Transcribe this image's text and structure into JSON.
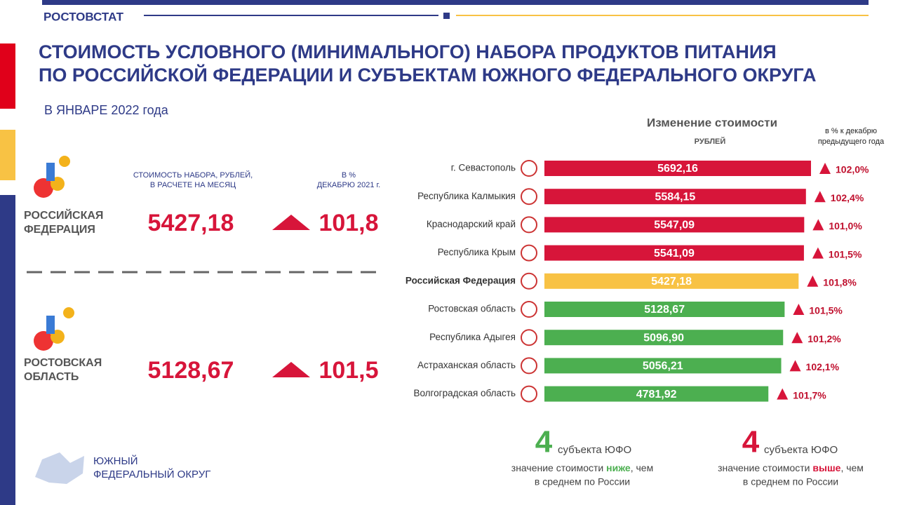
{
  "header": {
    "org": "РОСТОВСТАТ",
    "title_lines": [
      "СТОИМОСТЬ УСЛОВНОГО (МИНИМАЛЬНОГО) НАБОРА ПРОДУКТОВ ПИТАНИЯ",
      "ПО РОССИЙСКОЙ ФЕДЕРАЦИИ И СУБЪЕКТАМ ЮЖНОГО ФЕДЕРАЛЬНОГО ОКРУГА"
    ],
    "subtitle": "В  ЯНВАРЕ  2022 года"
  },
  "summary": {
    "col_cost": [
      "СТОИМОСТЬ НАБОРА, РУБЛЕЙ,",
      "В РАСЧЕТЕ НА МЕСЯЦ"
    ],
    "col_pct": [
      "В %",
      "ДЕКАБРЮ 2021 г."
    ],
    "rows": [
      {
        "name": [
          "РОССИЙСКАЯ",
          "ФЕДЕРАЦИЯ"
        ],
        "cost": "5427,18",
        "pct": "101,8"
      },
      {
        "name": [
          "РОСТОВСКАЯ",
          "ОБЛАСТЬ"
        ],
        "cost": "5128,67",
        "pct": "101,5"
      }
    ]
  },
  "chart_data": {
    "type": "bar",
    "title": "Изменение стоимости",
    "unit": "РУБЛЕЙ",
    "change_title": [
      "в % к декабрю",
      "предыдущего года"
    ],
    "categories": [
      "г. Севастополь",
      "Республика Калмыкия",
      "Краснодарский край",
      "Республика Крым",
      "Российская Федерация",
      "Ростовская область",
      "Республика Адыгея",
      "Астраханская область",
      "Волгоградская область"
    ],
    "values": [
      5692.16,
      5584.15,
      5547.09,
      5541.09,
      5427.18,
      5128.67,
      5096.9,
      5056.21,
      4781.92
    ],
    "value_labels": [
      "5692,16",
      "5584,15",
      "5547,09",
      "5541,09",
      "5427,18",
      "5128,67",
      "5096,90",
      "5056,21",
      "4781,92"
    ],
    "colors": [
      "#d7153a",
      "#d7153a",
      "#d7153a",
      "#d7153a",
      "#f8c244",
      "#4caf50",
      "#4caf50",
      "#4caf50",
      "#4caf50"
    ],
    "changes": {
      "values": [
        102.0,
        102.4,
        101.0,
        101.5,
        101.8,
        101.5,
        101.2,
        102.1,
        101.7
      ],
      "value_labels": [
        "102,0%",
        "102,4%",
        "101,0%",
        "101,5%",
        "101,8%",
        "101,5%",
        "101,2%",
        "102,1%",
        "101,7%"
      ]
    }
  },
  "footer": {
    "region": [
      "ЮЖНЫЙ",
      "ФЕДЕРАЛЬНЫЙ ОКРУГ"
    ],
    "below": {
      "count": "4",
      "unit": "субъекта  ЮФО",
      "text_before": "значение  стоимости ",
      "word": "ниже",
      "text_after": ", чем",
      "line2": "в среднем по России"
    },
    "above": {
      "count": "4",
      "unit": "субъекта  ЮФО",
      "text_before": "значение  стоимости ",
      "word": "выше",
      "text_after": ", чем",
      "line2": "в среднем по России"
    }
  }
}
